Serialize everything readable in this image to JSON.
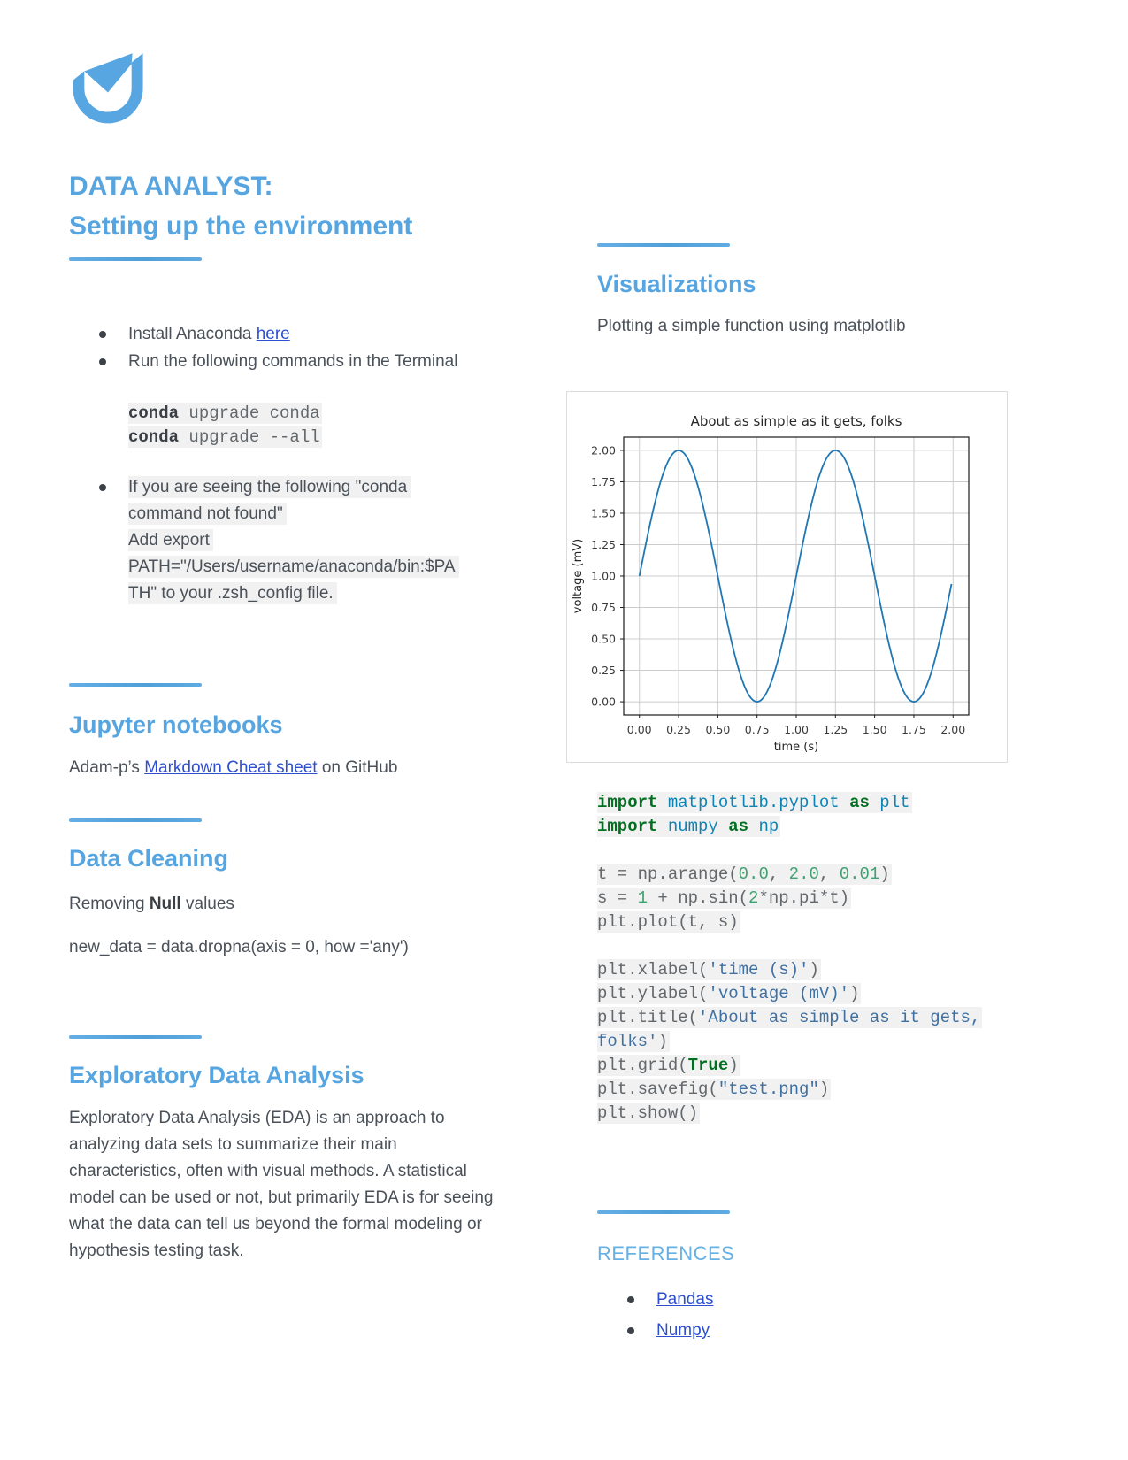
{
  "colors": {
    "heading_blue": "#56a5e0",
    "references_blue": "#66b0e3",
    "link_blue": "#2f4fce",
    "divider_blue": "#5aa7e0",
    "body_text": "#4a5159",
    "code_highlight_bg": "#f1f1f1",
    "plot_line": "#1f77b4",
    "logo_blue": "#57a6e2"
  },
  "logo": {
    "name": "udacity-logo"
  },
  "left": {
    "title_line1": "DATA ANALYST:",
    "title_line2": "Setting up the environment",
    "setup": {
      "bullet1_pre": "Install Anaconda ",
      "bullet1_link": "here",
      "bullet2": "Run the following commands in the Terminal",
      "conda_code": [
        [
          [
            "b",
            "conda"
          ],
          [
            "p",
            " upgrade conda"
          ]
        ],
        [
          [
            "b",
            "conda"
          ],
          [
            "p",
            " upgrade --all"
          ]
        ]
      ],
      "note_lines": [
        "If you are seeing the following \"conda",
        "command not found\"",
        "Add export",
        "PATH=\"/Users/username/anaconda/bin:$PA",
        "TH\" to your .zsh_config file."
      ]
    },
    "jupyter": {
      "heading": "Jupyter notebooks",
      "pre": "Adam-p’s ",
      "link": "Markdown Cheat sheet",
      "post": " on GitHub"
    },
    "cleaning": {
      "heading": "Data Cleaning",
      "line1_pre": "Removing ",
      "line1_bold": "Null",
      "line1_post": " values",
      "line2": "new_data = data.dropna(axis = 0, how ='any')"
    },
    "eda": {
      "heading": "Exploratory Data Analysis",
      "paragraph": "Exploratory Data Analysis (EDA) is an approach to analyzing data sets to summarize their main characteristics, often with visual methods. A statistical model can be used or not, but primarily EDA is for seeing what the data can tell us beyond the formal modeling or hypothesis testing task."
    }
  },
  "right": {
    "viz": {
      "heading": "Visualizations",
      "subtext": "Plotting a simple function using matplotlib"
    },
    "python_code": [
      [
        [
          "k",
          "import"
        ],
        [
          "p",
          " "
        ],
        [
          "n",
          "matplotlib.pyplot"
        ],
        [
          "p",
          " "
        ],
        [
          "k",
          "as"
        ],
        [
          "p",
          " "
        ],
        [
          "n",
          "plt"
        ]
      ],
      [
        [
          "k",
          "import"
        ],
        [
          "p",
          " "
        ],
        [
          "n",
          "numpy"
        ],
        [
          "p",
          " "
        ],
        [
          "k",
          "as"
        ],
        [
          "p",
          " "
        ],
        [
          "n",
          "np"
        ]
      ],
      [],
      [
        [
          "p",
          "t = np.arange("
        ],
        [
          "m",
          "0.0"
        ],
        [
          "p",
          ", "
        ],
        [
          "m",
          "2.0"
        ],
        [
          "p",
          ", "
        ],
        [
          "m",
          "0.01"
        ],
        [
          "p",
          ")"
        ]
      ],
      [
        [
          "p",
          "s = "
        ],
        [
          "m",
          "1"
        ],
        [
          "p",
          " + np.sin("
        ],
        [
          "m",
          "2"
        ],
        [
          "p",
          "*np.pi*t)"
        ]
      ],
      [
        [
          "p",
          "plt.plot(t, s)"
        ]
      ],
      [],
      [
        [
          "p",
          "plt.xlabel("
        ],
        [
          "s",
          "'time (s)'"
        ],
        [
          "p",
          ")"
        ]
      ],
      [
        [
          "p",
          "plt.ylabel("
        ],
        [
          "s",
          "'voltage (mV)'"
        ],
        [
          "p",
          ")"
        ]
      ],
      [
        [
          "p",
          "plt.title("
        ],
        [
          "s",
          "'About as simple as it gets, folks'"
        ],
        [
          "p",
          ")"
        ]
      ],
      [
        [
          "p",
          "plt.grid("
        ],
        [
          "k",
          "True"
        ],
        [
          "p",
          ")"
        ]
      ],
      [
        [
          "p",
          "plt.savefig("
        ],
        [
          "s",
          "\"test.png\""
        ],
        [
          "p",
          ")"
        ]
      ],
      [
        [
          "p",
          "plt.show()"
        ]
      ]
    ],
    "references": {
      "heading": "REFERENCES",
      "links": [
        "Pandas",
        "Numpy"
      ]
    }
  },
  "chart_data": {
    "type": "line",
    "title": "About as simple as it gets, folks",
    "xlabel": "time (s)",
    "ylabel": "voltage (mV)",
    "xlim": [
      -0.1,
      2.1
    ],
    "ylim": [
      -0.105,
      2.105
    ],
    "x_ticks": [
      "0.00",
      "0.25",
      "0.50",
      "0.75",
      "1.00",
      "1.25",
      "1.50",
      "1.75",
      "2.00"
    ],
    "y_ticks": [
      "0.00",
      "0.25",
      "0.50",
      "0.75",
      "1.00",
      "1.25",
      "1.50",
      "1.75",
      "2.00"
    ],
    "grid": true,
    "legend": "none",
    "line_color": "#1f77b4",
    "series": [
      {
        "name": "s = 1 + sin(2*pi*t)",
        "offset": 1,
        "amplitude": 1,
        "frequency": 1,
        "t_start": 0.0,
        "t_end": 2.0,
        "t_step": 0.01,
        "key_points": [
          [
            0,
            1.0
          ],
          [
            0.25,
            2.0
          ],
          [
            0.75,
            0.0
          ],
          [
            1.25,
            2.0
          ],
          [
            1.75,
            0.0
          ],
          [
            1.99,
            0.94
          ]
        ]
      }
    ]
  }
}
